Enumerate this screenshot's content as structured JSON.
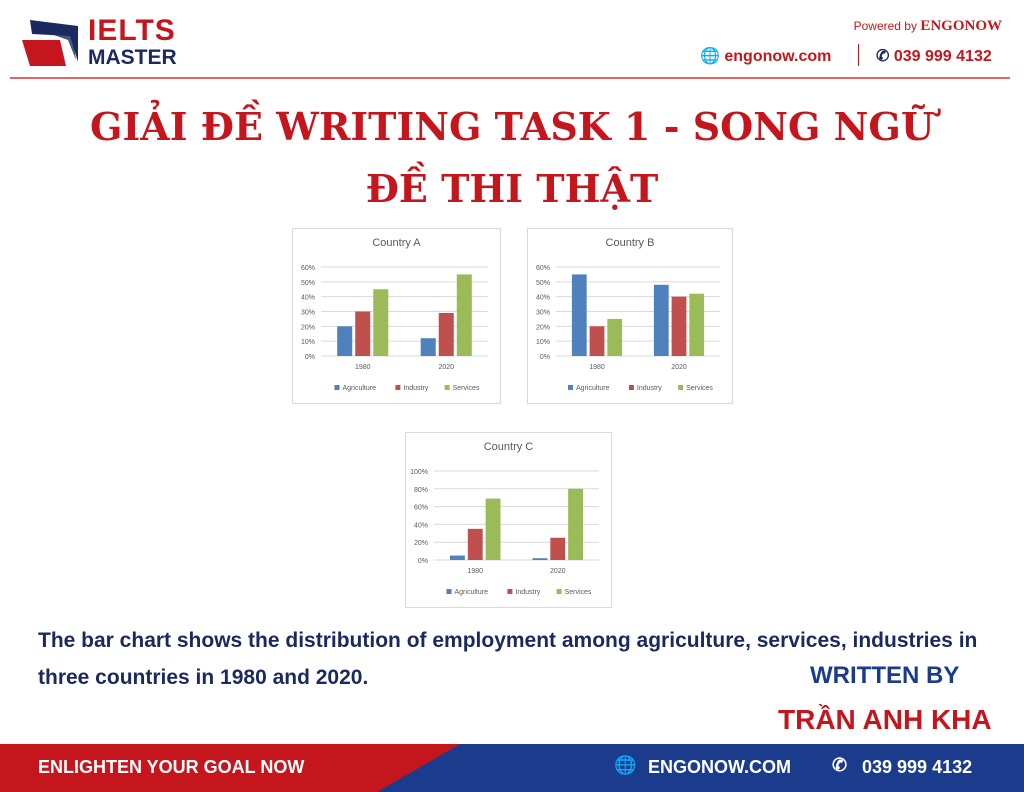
{
  "header": {
    "logo_line1": "IELTS",
    "logo_line2": "MASTER",
    "powered_prefix": "Powered by",
    "powered_brand": "ENGONOW",
    "website": "engonow.com",
    "phone": "039 999 4132"
  },
  "title": {
    "line1": "GIẢI ĐỀ WRITING TASK 1 - SONG NGỮ",
    "line2": "ĐỀ THI THẬT"
  },
  "description": "The bar chart shows the distribution of employment among agriculture, services, industries in three countries in 1980 and 2020.",
  "written_by": "WRITTEN BY",
  "author": "TRẦN ANH KHA",
  "footer": {
    "slogan": "ENLIGHTEN YOUR GOAL NOW",
    "website": "ENGONOW.COM",
    "phone": "039 999 4132"
  },
  "colors": {
    "brand_red": "#c4161c",
    "brand_navy": "#1b3c8c",
    "agriculture": "#4f81bd",
    "industry": "#c0504d",
    "services": "#9bbb59"
  },
  "chart_data": [
    {
      "type": "bar",
      "title": "Country A",
      "categories": [
        "1980",
        "2020"
      ],
      "ylim": [
        0,
        60
      ],
      "yticks": [
        "0%",
        "10%",
        "20%",
        "30%",
        "40%",
        "50%",
        "60%"
      ],
      "grid": true,
      "legend": "bottom",
      "series": [
        {
          "name": "Agriculture",
          "values": [
            20,
            12
          ]
        },
        {
          "name": "Industry",
          "values": [
            30,
            29
          ]
        },
        {
          "name": "Services",
          "values": [
            45,
            55
          ]
        }
      ]
    },
    {
      "type": "bar",
      "title": "Country B",
      "categories": [
        "1980",
        "2020"
      ],
      "ylim": [
        0,
        60
      ],
      "yticks": [
        "0%",
        "10%",
        "20%",
        "30%",
        "40%",
        "50%",
        "60%"
      ],
      "grid": true,
      "legend": "bottom",
      "series": [
        {
          "name": "Agriculture",
          "values": [
            55,
            48
          ]
        },
        {
          "name": "Industry",
          "values": [
            20,
            40
          ]
        },
        {
          "name": "Services",
          "values": [
            25,
            42
          ]
        }
      ]
    },
    {
      "type": "bar",
      "title": "Country C",
      "categories": [
        "1980",
        "2020"
      ],
      "ylim": [
        0,
        100
      ],
      "yticks": [
        "0%",
        "20%",
        "40%",
        "60%",
        "80%",
        "100%"
      ],
      "grid": true,
      "legend": "bottom",
      "series": [
        {
          "name": "Agriculture",
          "values": [
            5,
            2
          ]
        },
        {
          "name": "Industry",
          "values": [
            35,
            25
          ]
        },
        {
          "name": "Services",
          "values": [
            69,
            80
          ]
        }
      ]
    }
  ]
}
